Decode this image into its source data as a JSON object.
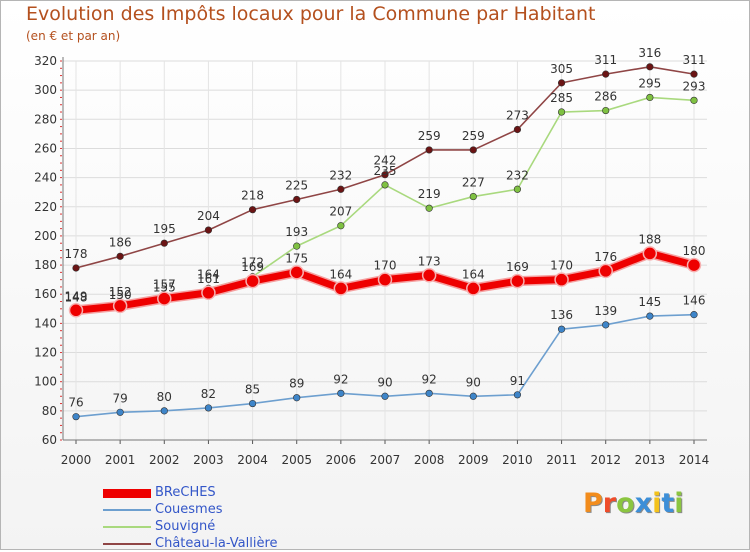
{
  "title": "Evolution des Impôts locaux pour la Commune par Habitant",
  "subtitle": "(en € et par an)",
  "logo": {
    "text": "Proxiti",
    "colors": [
      "#f28c1c",
      "#ef4c2a",
      "#8bc540",
      "#3d8fd8",
      "#f4c21b",
      "#3d8fd8",
      "#8bc540"
    ]
  },
  "chart_data": {
    "type": "line",
    "title": "Evolution des Impôts locaux pour la Commune par Habitant",
    "subtitle": "(en € et par an)",
    "x": [
      2000,
      2001,
      2002,
      2003,
      2004,
      2005,
      2006,
      2007,
      2008,
      2009,
      2010,
      2011,
      2012,
      2013,
      2014
    ],
    "ylim": [
      60,
      320
    ],
    "yticks": [
      60,
      80,
      100,
      120,
      140,
      160,
      180,
      200,
      220,
      240,
      260,
      280,
      300,
      320
    ],
    "grid": true,
    "legend_position": "bottom-left",
    "series": [
      {
        "name": "BReCHES",
        "color": "#ee0000",
        "width": 7,
        "values": [
          149,
          152,
          157,
          161,
          169,
          175,
          164,
          170,
          173,
          164,
          169,
          170,
          176,
          188,
          180
        ]
      },
      {
        "name": "Couesmes",
        "color": "#6d9fcf",
        "width": 1.6,
        "marker": "#3e85c9",
        "values": [
          76,
          79,
          80,
          82,
          85,
          89,
          92,
          90,
          92,
          90,
          91,
          136,
          139,
          145,
          146
        ]
      },
      {
        "name": "Souvigné",
        "color": "#a9d97e",
        "width": 1.6,
        "marker": "#7fc142",
        "values": [
          148,
          150,
          155,
          164,
          172,
          193,
          207,
          235,
          219,
          227,
          232,
          285,
          286,
          295,
          293
        ]
      },
      {
        "name": "Château-la-Vallière",
        "color": "#8f4545",
        "width": 1.6,
        "marker": "#6b1414",
        "values": [
          178,
          186,
          195,
          204,
          218,
          225,
          232,
          242,
          259,
          259,
          273,
          305,
          311,
          316,
          311
        ]
      }
    ]
  }
}
